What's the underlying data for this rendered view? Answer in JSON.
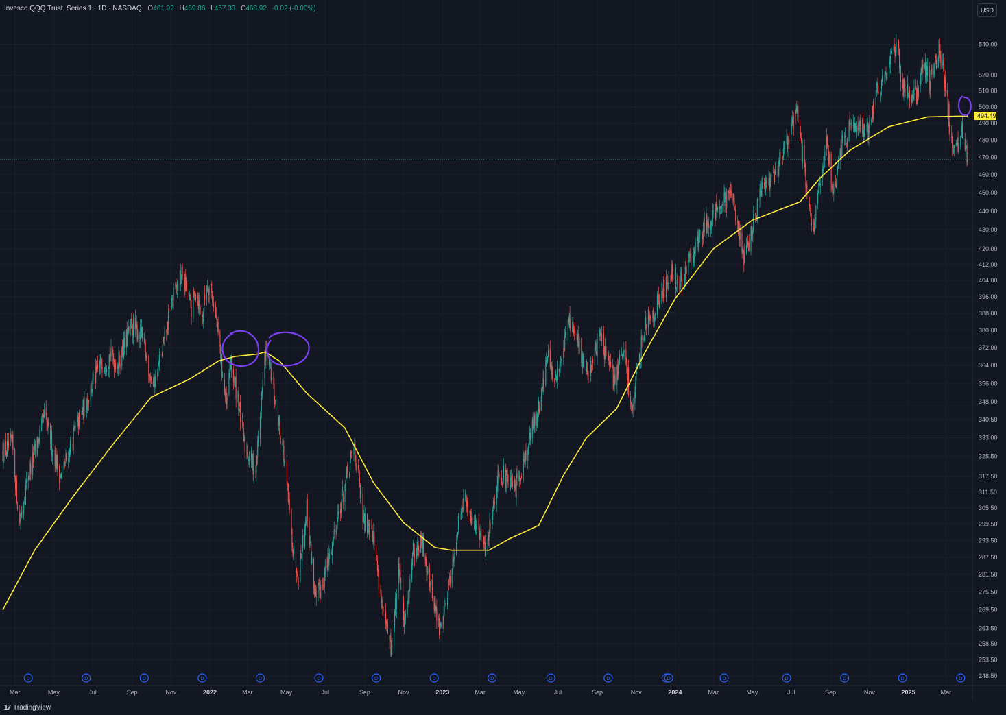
{
  "legend": {
    "symbol": "Invesco QQQ Trust, Series 1 · 1D · NASDAQ",
    "open_label": "O",
    "open": "461.92",
    "high_label": "H",
    "high": "469.86",
    "low_label": "L",
    "low": "457.33",
    "close_label": "C",
    "close": "468.92",
    "change": "-0.02 (-0.00%)"
  },
  "currency": "USD",
  "brand": "TradingView",
  "ma_badge": "494.49",
  "colors": {
    "background": "#131722",
    "up": "#26a69a",
    "down": "#ef5350",
    "ma": "#ffeb3b",
    "annotation": "#7b3ff2",
    "dividend": "#2962ff"
  },
  "chart_data": {
    "type": "candlestick",
    "title": "",
    "scale": "log",
    "ylim": [
      246,
      556
    ],
    "y_ticks": [
      248.5,
      253.5,
      258.5,
      263.5,
      269.5,
      275.5,
      281.5,
      287.5,
      293.5,
      299.5,
      305.5,
      311.5,
      317.5,
      325.5,
      333.0,
      340.5,
      348.0,
      356.0,
      364.0,
      372.0,
      380.0,
      388.0,
      396.0,
      404.0,
      412.0,
      420.0,
      430.0,
      440.0,
      450.0,
      460.0,
      470.0,
      480.0,
      490.0,
      500.0,
      510.0,
      520.0,
      540.0
    ],
    "x_ticks": [
      {
        "date": "2021-03-01",
        "label": "Mar"
      },
      {
        "date": "2021-05-01",
        "label": "May"
      },
      {
        "date": "2021-07-01",
        "label": "Jul"
      },
      {
        "date": "2021-09-01",
        "label": "Sep"
      },
      {
        "date": "2021-11-01",
        "label": "Nov"
      },
      {
        "date": "2022-01-01",
        "label": "2022"
      },
      {
        "date": "2022-03-01",
        "label": "Mar"
      },
      {
        "date": "2022-05-01",
        "label": "May"
      },
      {
        "date": "2022-07-01",
        "label": "Jul"
      },
      {
        "date": "2022-09-01",
        "label": "Sep"
      },
      {
        "date": "2022-11-01",
        "label": "Nov"
      },
      {
        "date": "2023-01-01",
        "label": "2023"
      },
      {
        "date": "2023-03-01",
        "label": "Mar"
      },
      {
        "date": "2023-05-01",
        "label": "May"
      },
      {
        "date": "2023-07-01",
        "label": "Jul"
      },
      {
        "date": "2023-09-01",
        "label": "Sep"
      },
      {
        "date": "2023-11-01",
        "label": "Nov"
      },
      {
        "date": "2024-01-01",
        "label": "2024"
      },
      {
        "date": "2024-03-01",
        "label": "Mar"
      },
      {
        "date": "2024-05-01",
        "label": "May"
      },
      {
        "date": "2024-07-01",
        "label": "Jul"
      },
      {
        "date": "2024-09-01",
        "label": "Sep"
      },
      {
        "date": "2024-11-01",
        "label": "Nov"
      },
      {
        "date": "2025-01-01",
        "label": "2025"
      },
      {
        "date": "2025-03-01",
        "label": "Mar"
      }
    ],
    "price_path": [
      [
        "2021-02-10",
        327
      ],
      [
        "2021-02-25",
        330
      ],
      [
        "2021-03-08",
        300
      ],
      [
        "2021-03-22",
        318
      ],
      [
        "2021-04-05",
        330
      ],
      [
        "2021-04-16",
        342
      ],
      [
        "2021-05-12",
        317
      ],
      [
        "2021-05-31",
        333
      ],
      [
        "2021-06-30",
        355
      ],
      [
        "2021-07-15",
        365
      ],
      [
        "2021-07-28",
        368
      ],
      [
        "2021-08-10",
        365
      ],
      [
        "2021-08-31",
        382
      ],
      [
        "2021-09-15",
        378
      ],
      [
        "2021-10-04",
        355
      ],
      [
        "2021-10-20",
        372
      ],
      [
        "2021-11-03",
        395
      ],
      [
        "2021-11-19",
        407
      ],
      [
        "2021-12-03",
        390
      ],
      [
        "2021-12-10",
        400
      ],
      [
        "2021-12-20",
        385
      ],
      [
        "2021-12-27",
        403
      ],
      [
        "2022-01-03",
        400
      ],
      [
        "2022-01-14",
        378
      ],
      [
        "2022-01-27",
        345
      ],
      [
        "2022-02-02",
        365
      ],
      [
        "2022-02-14",
        350
      ],
      [
        "2022-02-24",
        330
      ],
      [
        "2022-03-14",
        320
      ],
      [
        "2022-03-29",
        370
      ],
      [
        "2022-04-05",
        362
      ],
      [
        "2022-04-25",
        330
      ],
      [
        "2022-05-12",
        290
      ],
      [
        "2022-05-20",
        282
      ],
      [
        "2022-06-02",
        305
      ],
      [
        "2022-06-16",
        272
      ],
      [
        "2022-07-05",
        285
      ],
      [
        "2022-07-20",
        302
      ],
      [
        "2022-08-16",
        330
      ],
      [
        "2022-08-30",
        300
      ],
      [
        "2022-09-12",
        300
      ],
      [
        "2022-09-30",
        268
      ],
      [
        "2022-10-13",
        256
      ],
      [
        "2022-10-25",
        285
      ],
      [
        "2022-11-03",
        263
      ],
      [
        "2022-11-15",
        290
      ],
      [
        "2022-11-30",
        292
      ],
      [
        "2022-12-05",
        288
      ],
      [
        "2022-12-28",
        262
      ],
      [
        "2023-01-12",
        280
      ],
      [
        "2023-02-02",
        310
      ],
      [
        "2023-02-15",
        303
      ],
      [
        "2023-03-10",
        290
      ],
      [
        "2023-03-31",
        320
      ],
      [
        "2023-04-25",
        312
      ],
      [
        "2023-05-15",
        330
      ],
      [
        "2023-05-31",
        345
      ],
      [
        "2023-06-15",
        368
      ],
      [
        "2023-06-26",
        355
      ],
      [
        "2023-07-19",
        385
      ],
      [
        "2023-08-03",
        372
      ],
      [
        "2023-08-18",
        360
      ],
      [
        "2023-09-05",
        378
      ],
      [
        "2023-09-26",
        357
      ],
      [
        "2023-10-12",
        370
      ],
      [
        "2023-10-26",
        345
      ],
      [
        "2023-11-15",
        385
      ],
      [
        "2023-12-01",
        390
      ],
      [
        "2023-12-28",
        410
      ],
      [
        "2024-01-05",
        400
      ],
      [
        "2024-01-31",
        418
      ],
      [
        "2024-02-15",
        432
      ],
      [
        "2024-03-07",
        442
      ],
      [
        "2024-04-01",
        448
      ],
      [
        "2024-04-19",
        414
      ],
      [
        "2024-05-15",
        450
      ],
      [
        "2024-06-10",
        466
      ],
      [
        "2024-06-26",
        480
      ],
      [
        "2024-07-10",
        500
      ],
      [
        "2024-07-25",
        452
      ],
      [
        "2024-08-05",
        430
      ],
      [
        "2024-08-26",
        478
      ],
      [
        "2024-09-06",
        450
      ],
      [
        "2024-09-20",
        480
      ],
      [
        "2024-10-10",
        492
      ],
      [
        "2024-11-01",
        485
      ],
      [
        "2024-11-12",
        510
      ],
      [
        "2024-12-05",
        530
      ],
      [
        "2024-12-16",
        538
      ],
      [
        "2024-12-20",
        515
      ],
      [
        "2025-01-13",
        505
      ],
      [
        "2025-01-24",
        530
      ],
      [
        "2025-02-03",
        515
      ],
      [
        "2025-02-19",
        538
      ],
      [
        "2025-03-03",
        503
      ],
      [
        "2025-03-13",
        470
      ],
      [
        "2025-03-25",
        485
      ],
      [
        "2025-04-04",
        468
      ]
    ],
    "moving_average": [
      [
        "2021-02-10",
        269.5
      ],
      [
        "2021-04-01",
        290
      ],
      [
        "2021-06-01",
        310
      ],
      [
        "2021-08-01",
        330
      ],
      [
        "2021-10-01",
        350
      ],
      [
        "2021-12-01",
        358
      ],
      [
        "2022-01-15",
        366
      ],
      [
        "2022-02-10",
        368
      ],
      [
        "2022-03-15",
        369
      ],
      [
        "2022-03-29",
        370
      ],
      [
        "2022-04-20",
        366
      ],
      [
        "2022-06-01",
        352
      ],
      [
        "2022-08-01",
        337
      ],
      [
        "2022-09-15",
        315
      ],
      [
        "2022-11-01",
        300
      ],
      [
        "2022-12-20",
        291
      ],
      [
        "2023-01-15",
        290
      ],
      [
        "2023-02-15",
        290
      ],
      [
        "2023-03-15",
        290
      ],
      [
        "2023-04-15",
        294
      ],
      [
        "2023-06-01",
        299
      ],
      [
        "2023-07-10",
        318
      ],
      [
        "2023-08-15",
        333
      ],
      [
        "2023-10-01",
        345
      ],
      [
        "2023-11-15",
        370
      ],
      [
        "2024-01-01",
        395
      ],
      [
        "2024-03-01",
        420
      ],
      [
        "2024-05-01",
        435
      ],
      [
        "2024-07-15",
        445
      ],
      [
        "2024-08-15",
        458
      ],
      [
        "2024-10-01",
        474
      ],
      [
        "2024-12-01",
        488
      ],
      [
        "2025-02-01",
        494
      ],
      [
        "2025-04-04",
        494.49
      ]
    ],
    "dividend_marker_label": "D",
    "dividends": [
      "2021-03-22",
      "2021-06-21",
      "2021-09-20",
      "2021-12-20",
      "2022-03-21",
      "2022-06-21",
      "2022-09-19",
      "2022-12-19",
      "2023-03-20",
      "2023-06-20",
      "2023-09-18",
      "2023-12-18",
      "2023-12-22",
      "2024-03-18",
      "2024-06-24",
      "2024-09-23",
      "2024-12-23",
      "2025-03-24"
    ],
    "last_price": 468.92
  }
}
